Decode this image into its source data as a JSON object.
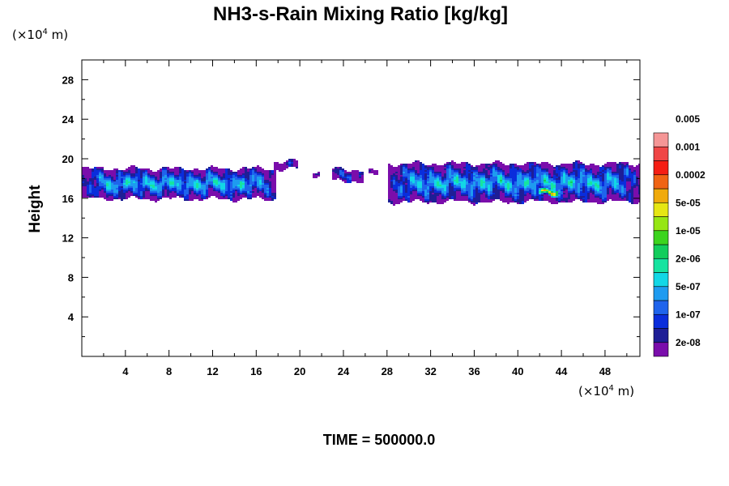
{
  "chart_data": {
    "type": "heatmap",
    "title": "NH3-s-Rain Mixing Ratio [kg/kg]",
    "ylabel": "Height",
    "xlabel": "",
    "x_unit_prefix": "(×10",
    "x_unit_exp": "4",
    "x_unit_suffix": " m)",
    "y_unit_prefix": "(×10",
    "y_unit_exp": "4",
    "y_unit_suffix": " m)",
    "xlim": [
      0,
      51.2
    ],
    "ylim": [
      0,
      30
    ],
    "x_ticks": [
      4,
      8,
      12,
      16,
      20,
      24,
      28,
      32,
      36,
      40,
      44,
      48
    ],
    "y_ticks": [
      4,
      8,
      12,
      16,
      20,
      24,
      28
    ],
    "x_minor_step": 2,
    "y_minor_step": 2,
    "footer": "TIME = 500000.0",
    "colorbar": {
      "colors": [
        "#7a0dab",
        "#1e1e96",
        "#0a2ddc",
        "#1f64ec",
        "#1e9bf0",
        "#12d7e6",
        "#16e3a0",
        "#12cd5c",
        "#3cd41e",
        "#96e614",
        "#e6e614",
        "#f0aa0c",
        "#f06414",
        "#f51e14",
        "#f04646",
        "#f59696"
      ],
      "labels": [
        "2e-08",
        "1e-07",
        "5e-07",
        "2e-06",
        "1e-05",
        "5e-05",
        "0.0002",
        "0.001",
        "0.005"
      ],
      "label_after_band": [
        1,
        3,
        5,
        7,
        9,
        11,
        13,
        15,
        17
      ]
    },
    "layer": {
      "blobs": [
        {
          "x0": 0.0,
          "x1": 17.7,
          "z0": 16.0,
          "z1": 19.1,
          "level": 5
        },
        {
          "x0": 17.5,
          "x1": 19.7,
          "z0": 19.0,
          "z1": 19.8,
          "level": 1
        },
        {
          "x0": 21.0,
          "x1": 21.8,
          "z0": 18.4,
          "z1": 18.9,
          "level": 1
        },
        {
          "x0": 22.8,
          "x1": 25.8,
          "z0": 17.8,
          "z1": 19.0,
          "level": 2
        },
        {
          "x0": 26.2,
          "x1": 27.0,
          "z0": 18.3,
          "z1": 18.8,
          "level": 1
        },
        {
          "x0": 28.0,
          "x1": 51.2,
          "z0": 15.7,
          "z1": 19.6,
          "level": 5
        },
        {
          "x0": 41.8,
          "x1": 43.6,
          "z0": 16.3,
          "z1": 17.2,
          "level": 12
        }
      ]
    }
  }
}
